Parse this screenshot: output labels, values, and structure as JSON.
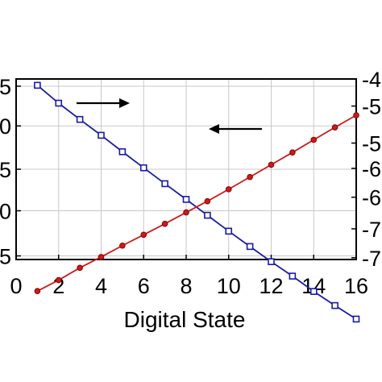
{
  "chart_data": {
    "type": "line",
    "title": "",
    "xlabel": "Digital State",
    "ylabel_left": "",
    "ylabel_right": "",
    "grid": true,
    "x": [
      1,
      2,
      3,
      4,
      5,
      6,
      7,
      8,
      9,
      10,
      11,
      12,
      13,
      14,
      15,
      16
    ],
    "xlim": [
      0,
      16
    ],
    "x_ticks": [
      "0",
      "2",
      "4",
      "6",
      "8",
      "10",
      "12",
      "14",
      "16"
    ],
    "y_left_ticks_visible": [
      "5",
      "0",
      "5",
      "0",
      "5"
    ],
    "y_right_ticks_visible": [
      "-4",
      "-5",
      "-5",
      "-6",
      "-6",
      "-7",
      "-7"
    ],
    "series": [
      {
        "color": "#1a1aa8",
        "marker": "square",
        "axis": "left",
        "arrow": "right",
        "values": [
          0.965,
          0.866,
          0.776,
          0.688,
          0.597,
          0.508,
          0.42,
          0.333,
          0.245,
          0.157,
          0.072,
          -0.012,
          -0.092,
          -0.177,
          -0.255,
          -0.33
        ]
      },
      {
        "color": "#cc1a1a",
        "marker": "circle",
        "axis": "right",
        "arrow": "left",
        "values": [
          -0.175,
          -0.114,
          -0.046,
          0.014,
          0.077,
          0.137,
          0.198,
          0.261,
          0.323,
          0.389,
          0.457,
          0.525,
          0.593,
          0.663,
          0.732,
          0.799
        ]
      }
    ]
  }
}
